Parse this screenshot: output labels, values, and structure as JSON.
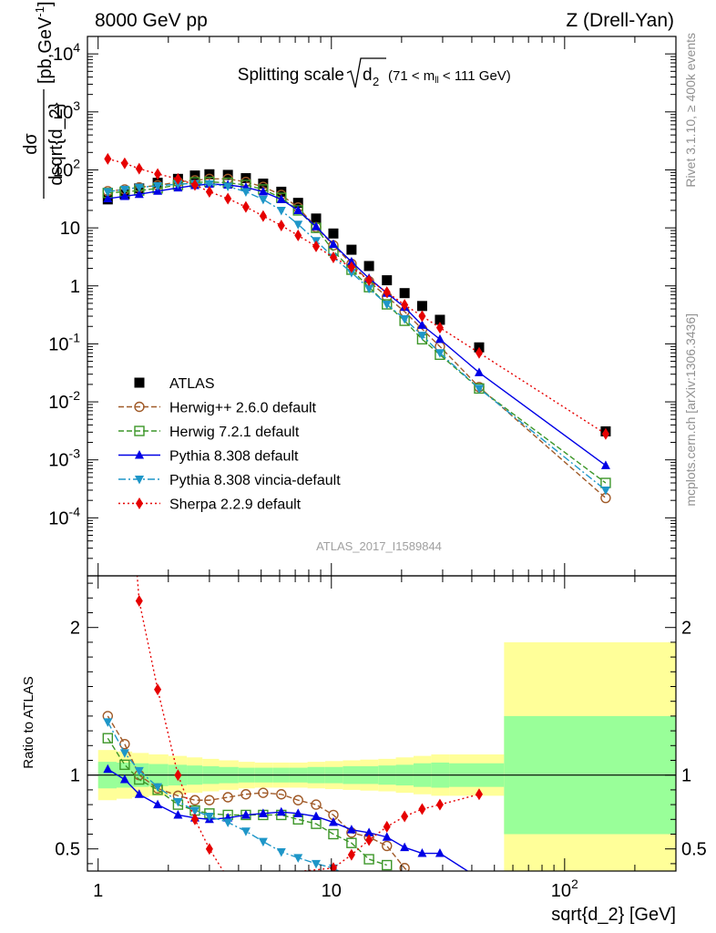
{
  "header": {
    "left": "8000 GeV pp",
    "right": "Z (Drell-Yan)"
  },
  "side_notes": {
    "rivet": "Rivet 3.1.10, ≥ 400k events",
    "mcplots": "mcplots.cern.ch [arXiv:1306.3436]"
  },
  "analysis_id": "ATLAS_2017_I1589844",
  "colors": {
    "atlas": "#000000",
    "herwigpp": "#a05a28",
    "herwig7": "#3c9628",
    "pythia": "#0000e6",
    "vincia": "#1e96c8",
    "sherpa": "#e60000",
    "band_inner": "#99ff99",
    "band_outer": "#ffff99"
  },
  "chart_data": [
    {
      "type": "line",
      "panel": "main",
      "title": "Splitting scale",
      "title_symbol": "d",
      "title_symbol_sub": "2",
      "title_cut_pre": "(71 < m",
      "title_cut_sub": "ll",
      "title_cut_post": " < 111 GeV)",
      "ylabel_num": "dσ",
      "ylabel_den": "dsqrt{d_2}",
      "ylabel_unit_pre": "[pb,GeV",
      "ylabel_unit_sup": "-1",
      "ylabel_unit_post": "]",
      "xscale": "log",
      "yscale": "log",
      "xlim": [
        0.9,
        300
      ],
      "ylim": [
        1e-05,
        20000
      ],
      "legend_position": "lower-left",
      "x_ticks": [],
      "y_ticks": [
        {
          "value": 0.0001,
          "base": "10",
          "exp": "-4"
        },
        {
          "value": 0.001,
          "base": "10",
          "exp": "-3"
        },
        {
          "value": 0.01,
          "base": "10",
          "exp": "-2"
        },
        {
          "value": 0.1,
          "base": "10",
          "exp": "-1"
        },
        {
          "value": 1,
          "base": "1",
          "exp": ""
        },
        {
          "value": 10,
          "base": "10",
          "exp": ""
        },
        {
          "value": 100,
          "base": "10",
          "exp": "2"
        },
        {
          "value": 1000,
          "base": "10",
          "exp": "3"
        },
        {
          "value": 10000,
          "base": "10",
          "exp": "4"
        }
      ],
      "x": [
        1.1,
        1.3,
        1.5,
        1.8,
        2.2,
        2.6,
        3.0,
        3.6,
        4.3,
        5.1,
        6.1,
        7.2,
        8.6,
        10.2,
        12.2,
        14.5,
        17.3,
        20.6,
        24.5,
        29.2,
        43.0,
        150.0
      ],
      "series": [
        {
          "name": "ATLAS",
          "key": "atlas",
          "marker": "square",
          "dash": "none",
          "values": [
            31,
            38,
            48,
            60,
            70,
            80,
            84,
            82,
            72,
            58,
            42,
            27,
            14.5,
            8.0,
            4.2,
            2.2,
            1.25,
            0.75,
            0.45,
            0.26,
            0.087,
            0.0031
          ]
        },
        {
          "name": "Herwig++ 2.6.0 default",
          "key": "herwigpp",
          "marker": "circle-open",
          "dash": "6,3",
          "values": [
            43,
            46,
            50,
            54,
            62,
            66,
            70,
            70,
            62,
            51,
            37,
            22.5,
            10.3,
            5.0,
            2.4,
            1.2,
            0.65,
            0.36,
            0.18,
            0.09,
            0.018,
            0.00022
          ]
        },
        {
          "name": "Herwig 7.2.1 default",
          "key": "herwig7",
          "marker": "square-open",
          "dash": "6,3",
          "values": [
            40,
            42,
            44,
            48,
            55,
            61,
            62,
            60,
            55,
            46,
            33,
            20,
            10,
            4.0,
            1.9,
            0.95,
            0.48,
            0.25,
            0.12,
            0.065,
            0.017,
            0.0004
          ]
        },
        {
          "name": "Pythia 8.308 default",
          "key": "pythia",
          "marker": "triangle-up",
          "dash": "none",
          "values": [
            32,
            35,
            38,
            43,
            49,
            54,
            57,
            55,
            50,
            42,
            31,
            20,
            10.5,
            5.2,
            2.6,
            1.35,
            0.75,
            0.43,
            0.21,
            0.12,
            0.032,
            0.0008
          ]
        },
        {
          "name": "Pythia 8.308 vincia-default",
          "key": "vincia",
          "marker": "triangle-down",
          "dash": "8,3,2,3",
          "values": [
            42,
            46,
            50,
            53,
            57,
            58,
            57,
            52,
            42,
            31,
            20,
            11.5,
            6.0,
            3.1,
            1.7,
            0.9,
            0.48,
            0.27,
            0.14,
            0.07,
            0.017,
            0.0003
          ]
        },
        {
          "name": "Sherpa 2.2.9 default",
          "key": "sherpa",
          "marker": "diamond",
          "dash": "2,3",
          "values": [
            155,
            130,
            105,
            85,
            70,
            55,
            42,
            32,
            23,
            16,
            11,
            7.4,
            4.8,
            3.1,
            2.1,
            1.25,
            0.78,
            0.47,
            0.3,
            0.19,
            0.07,
            0.0028
          ]
        }
      ]
    },
    {
      "type": "line",
      "panel": "ratio",
      "xlabel": "sqrt{d_2} [GeV]",
      "ylabel": "Ratio to ATLAS",
      "xscale": "log",
      "yscale": "linear",
      "xlim": [
        0.9,
        300
      ],
      "ylim": [
        0.35,
        2.35
      ],
      "reference_line": 1,
      "x_ticks": [
        {
          "value": 1,
          "base": "1",
          "exp": ""
        },
        {
          "value": 10,
          "base": "10",
          "exp": ""
        },
        {
          "value": 100,
          "base": "10",
          "exp": "2"
        }
      ],
      "y_ticks": [
        {
          "value": 0.5,
          "label": "0.5"
        },
        {
          "value": 1,
          "label": "1"
        },
        {
          "value": 2,
          "label": "2"
        }
      ],
      "bands": {
        "edges": [
          1.0,
          1.2,
          1.4,
          1.65,
          2.0,
          2.4,
          2.8,
          3.3,
          4.0,
          4.7,
          5.6,
          6.6,
          7.9,
          9.4,
          11.2,
          13.3,
          15.9,
          18.9,
          22.5,
          26.8,
          32.0,
          55.0,
          300.0
        ],
        "inner_half_width": [
          0.09,
          0.085,
          0.08,
          0.075,
          0.07,
          0.065,
          0.06,
          0.055,
          0.05,
          0.05,
          0.05,
          0.05,
          0.055,
          0.055,
          0.06,
          0.06,
          0.065,
          0.07,
          0.08,
          0.085,
          0.08,
          0.4
        ],
        "outer_half_width": [
          0.17,
          0.16,
          0.15,
          0.14,
          0.13,
          0.12,
          0.11,
          0.1,
          0.09,
          0.085,
          0.085,
          0.085,
          0.09,
          0.095,
          0.1,
          0.105,
          0.11,
          0.12,
          0.13,
          0.14,
          0.14,
          0.9
        ]
      },
      "series": [
        {
          "key": "herwigpp",
          "marker": "circle-open",
          "dash": "6,3",
          "x": [
            1.1,
            1.3,
            1.5,
            1.8,
            2.2,
            2.6,
            3.0,
            3.6,
            4.3,
            5.1,
            6.1,
            7.2,
            8.6,
            10.2,
            12.2,
            14.5,
            17.3,
            20.6,
            24.5
          ],
          "values": [
            1.4,
            1.21,
            1.0,
            0.91,
            0.86,
            0.83,
            0.83,
            0.85,
            0.87,
            0.88,
            0.87,
            0.83,
            0.8,
            0.73,
            0.61,
            0.58,
            0.52,
            0.37,
            0.25
          ]
        },
        {
          "key": "herwig7",
          "marker": "square-open",
          "dash": "6,3",
          "x": [
            1.1,
            1.3,
            1.5,
            1.8,
            2.2,
            2.6,
            3.0,
            3.6,
            4.3,
            5.1,
            6.1,
            7.2,
            8.6,
            10.2,
            12.2,
            14.5,
            17.3
          ],
          "values": [
            1.25,
            1.07,
            0.97,
            0.9,
            0.8,
            0.76,
            0.74,
            0.73,
            0.73,
            0.73,
            0.73,
            0.7,
            0.67,
            0.6,
            0.54,
            0.43,
            0.39
          ]
        },
        {
          "key": "pythia",
          "marker": "triangle-up",
          "dash": "none",
          "x": [
            1.1,
            1.3,
            1.5,
            1.8,
            2.2,
            2.6,
            3.0,
            3.6,
            4.3,
            5.1,
            6.1,
            7.2,
            8.6,
            10.2,
            12.2,
            14.5,
            17.3,
            20.6,
            24.5,
            29.2,
            43.0
          ],
          "values": [
            1.04,
            0.97,
            0.87,
            0.8,
            0.73,
            0.71,
            0.7,
            0.71,
            0.73,
            0.74,
            0.75,
            0.74,
            0.72,
            0.68,
            0.63,
            0.61,
            0.58,
            0.51,
            0.47,
            0.47,
            0.3
          ]
        },
        {
          "key": "vincia",
          "marker": "triangle-down",
          "dash": "8,3,2,3",
          "x": [
            1.1,
            1.3,
            1.5,
            1.8,
            2.2,
            2.6,
            3.0,
            3.6,
            4.3,
            5.1,
            6.1,
            7.2,
            8.6,
            10.2,
            12.2
          ],
          "values": [
            1.36,
            1.15,
            1.03,
            0.92,
            0.82,
            0.76,
            0.72,
            0.68,
            0.62,
            0.55,
            0.48,
            0.44,
            0.4,
            0.37,
            0.3
          ]
        },
        {
          "key": "sherpa",
          "marker": "diamond",
          "dash": "2,3",
          "x": [
            1.3,
            1.5,
            1.8,
            2.2,
            2.6,
            3.0,
            3.6,
            10.2,
            12.2,
            14.5,
            17.3,
            20.6,
            24.5,
            29.2,
            43.0
          ],
          "values": [
            3.4,
            2.18,
            1.58,
            1.0,
            0.7,
            0.5,
            0.3,
            0.37,
            0.46,
            0.56,
            0.65,
            0.72,
            0.77,
            0.8,
            0.87
          ]
        }
      ]
    }
  ]
}
